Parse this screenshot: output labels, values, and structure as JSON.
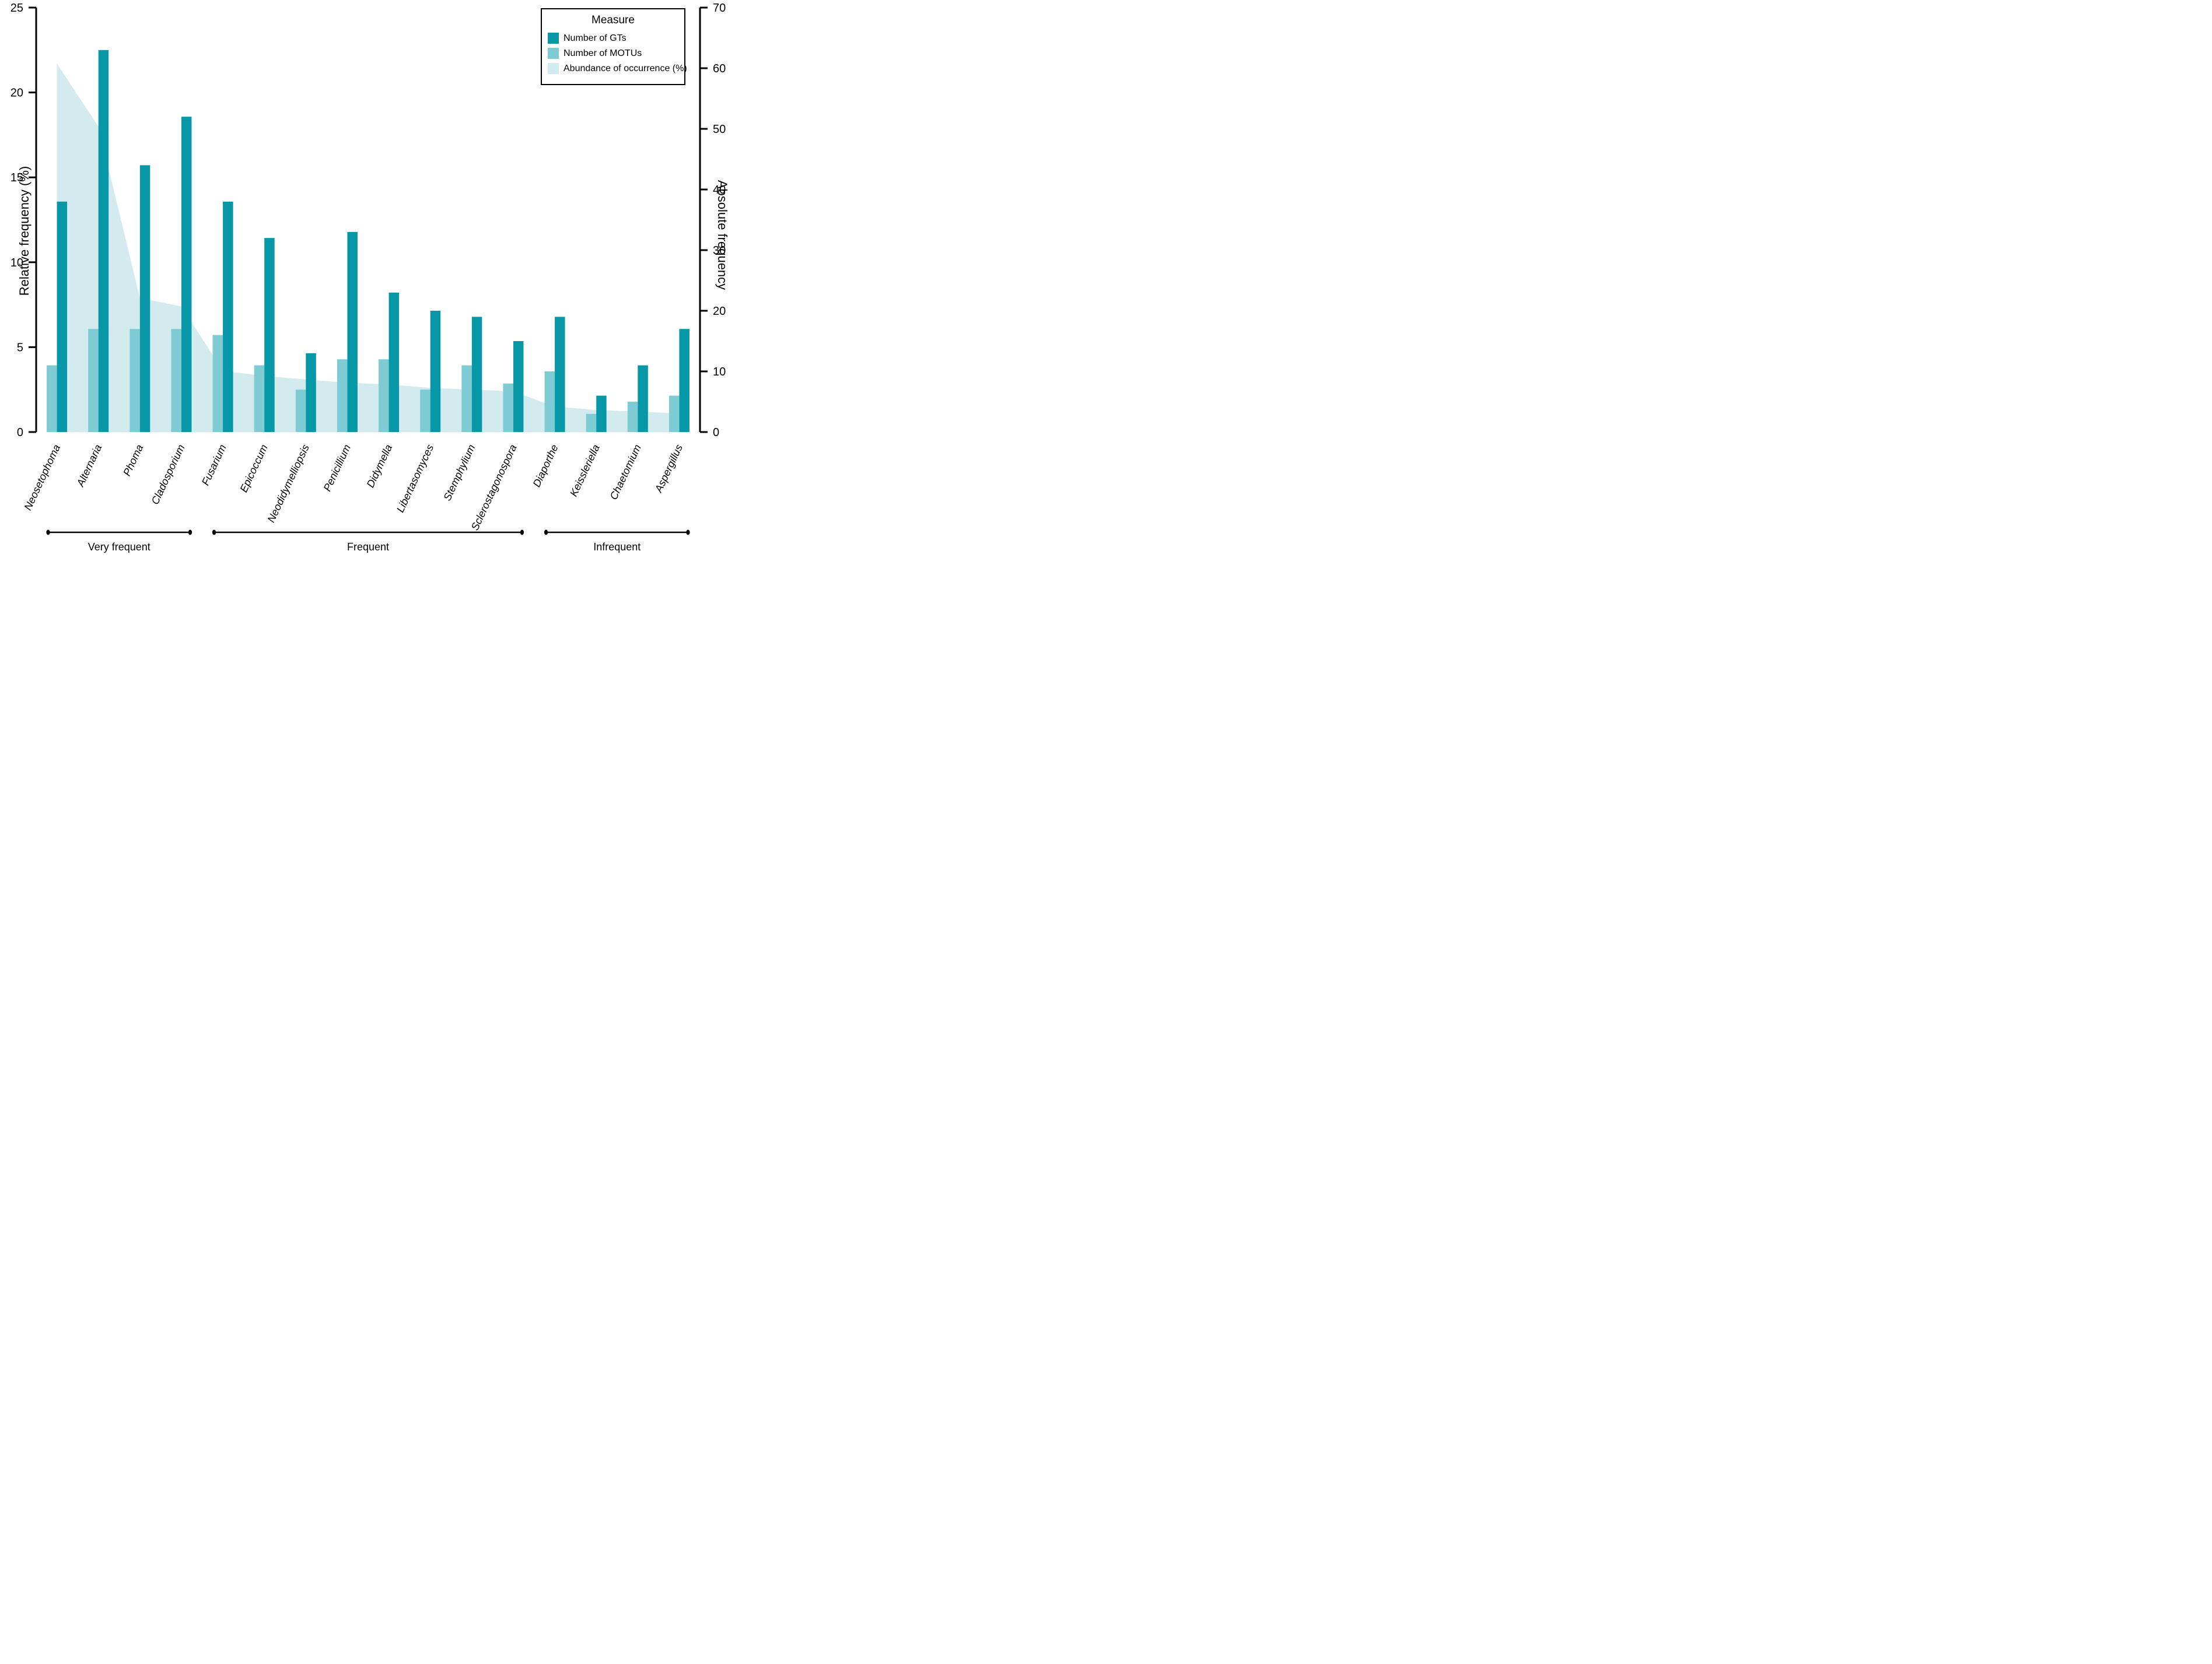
{
  "chart_data": {
    "type": "bar",
    "title": "",
    "categories": [
      "Neosetophoma",
      "Alternaria",
      "Phoma",
      "Cladosporium",
      "Fusarium",
      "Epicoccum",
      "Neodidymelliopsis",
      "Penicillium",
      "Didymella",
      "Libertasomyces",
      "Stemphylium",
      "Sclerostagonospora",
      "Diaporthe",
      "Keissleriella",
      "Chaetomium",
      "Aspergillus"
    ],
    "series": [
      {
        "name": "Number of GTs",
        "type": "bar",
        "axis": "right",
        "color": "#0897a6",
        "values": [
          38,
          63,
          44,
          52,
          38,
          32,
          13,
          33,
          23,
          20,
          19,
          15,
          19,
          6,
          11,
          17
        ]
      },
      {
        "name": "Number of MOTUs",
        "type": "bar",
        "axis": "right",
        "color": "#7fcbd4",
        "values": [
          11,
          17,
          17,
          17,
          16,
          11,
          7,
          12,
          12,
          7,
          11,
          8,
          10,
          3,
          5,
          6
        ]
      },
      {
        "name": "Abundance of occurrence (%)",
        "type": "area",
        "axis": "left",
        "color": "#d3eaee",
        "values": [
          21.7,
          18.0,
          7.9,
          7.4,
          3.6,
          3.3,
          3.1,
          2.9,
          2.8,
          2.6,
          2.5,
          2.4,
          1.5,
          1.3,
          1.2,
          1.1
        ]
      }
    ],
    "left_axis": {
      "label": "Relative frequency (%)",
      "range": [
        0,
        25
      ],
      "ticks": [
        0,
        5,
        10,
        15,
        20,
        25
      ]
    },
    "right_axis": {
      "label": "Absolute frequency",
      "range": [
        0,
        70
      ],
      "ticks": [
        0,
        10,
        20,
        30,
        40,
        50,
        60,
        70
      ]
    },
    "legend": {
      "title": "Measure",
      "position": "top-right"
    },
    "groups": [
      {
        "label": "Very frequent",
        "from": 0,
        "to": 3
      },
      {
        "label": "Frequent",
        "from": 4,
        "to": 11
      },
      {
        "label": "Infrequent",
        "from": 12,
        "to": 15
      }
    ],
    "grid": "off"
  }
}
